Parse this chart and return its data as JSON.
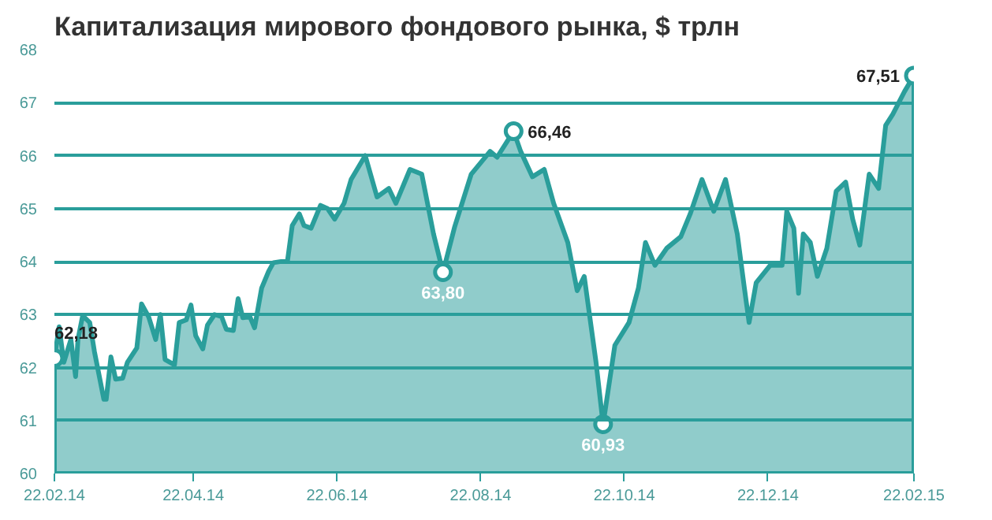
{
  "chart_data": {
    "type": "area",
    "title": "Капитализация мирового фондового рынка, $ трлн",
    "x": [
      "2014-02-22",
      "2014-02-24",
      "2014-02-26",
      "2014-03-01",
      "2014-03-03",
      "2014-03-04",
      "2014-03-06",
      "2014-03-09",
      "2014-03-11",
      "2014-03-15",
      "2014-03-16",
      "2014-03-18",
      "2014-03-20",
      "2014-03-23",
      "2014-03-25",
      "2014-03-29",
      "2014-03-31",
      "2014-04-03",
      "2014-04-06",
      "2014-04-08",
      "2014-04-10",
      "2014-04-14",
      "2014-04-16",
      "2014-04-19",
      "2014-04-21",
      "2014-04-23",
      "2014-04-26",
      "2014-04-28",
      "2014-05-01",
      "2014-05-04",
      "2014-05-06",
      "2014-05-09",
      "2014-05-11",
      "2014-05-13",
      "2014-05-16",
      "2014-05-18",
      "2014-05-21",
      "2014-05-24",
      "2014-05-26",
      "2014-06-01",
      "2014-06-03",
      "2014-06-06",
      "2014-06-08",
      "2014-06-11",
      "2014-06-15",
      "2014-06-18",
      "2014-06-21",
      "2014-06-25",
      "2014-06-28",
      "2014-07-04",
      "2014-07-09",
      "2014-07-14",
      "2014-07-17",
      "2014-07-23",
      "2014-07-28",
      "2014-08-02",
      "2014-08-06",
      "2014-08-11",
      "2014-08-18",
      "2014-08-26",
      "2014-08-29",
      "2014-09-05",
      "2014-09-08",
      "2014-09-13",
      "2014-09-18",
      "2014-09-22",
      "2014-09-28",
      "2014-10-02",
      "2014-10-05",
      "2014-10-10",
      "2014-10-13",
      "2014-10-18",
      "2014-10-24",
      "2014-10-28",
      "2014-10-31",
      "2014-11-04",
      "2014-11-09",
      "2014-11-15",
      "2014-11-19",
      "2014-11-24",
      "2014-11-29",
      "2014-12-04",
      "2014-12-09",
      "2014-12-12",
      "2014-12-14",
      "2014-12-17",
      "2014-12-23",
      "2014-12-28",
      "2014-12-30",
      "2015-01-02",
      "2015-01-04",
      "2015-01-06",
      "2015-01-09",
      "2015-01-12",
      "2015-01-16",
      "2015-01-20",
      "2015-01-24",
      "2015-01-27",
      "2015-01-30",
      "2015-02-03",
      "2015-02-07",
      "2015-02-10",
      "2015-02-13",
      "2015-02-18",
      "2015-02-22"
    ],
    "series": [
      {
        "color": "#2a9e9b",
        "values": [
          62.18,
          62.77,
          62.1,
          62.53,
          61.83,
          62.53,
          62.98,
          62.85,
          62.3,
          61.4,
          61.4,
          62.2,
          61.78,
          61.8,
          62.1,
          62.37,
          63.2,
          62.96,
          62.53,
          63.0,
          62.15,
          62.05,
          62.85,
          62.9,
          63.18,
          62.6,
          62.35,
          62.8,
          63.0,
          62.96,
          62.72,
          62.7,
          63.3,
          62.94,
          62.96,
          62.75,
          63.5,
          63.82,
          63.98,
          64.02,
          64.68,
          64.9,
          64.68,
          64.63,
          65.06,
          65.0,
          64.8,
          65.1,
          65.55,
          66.0,
          65.22,
          65.38,
          65.1,
          65.74,
          65.65,
          64.52,
          63.8,
          64.66,
          65.65,
          66.08,
          65.97,
          66.46,
          66.08,
          65.6,
          65.74,
          65.1,
          64.36,
          63.45,
          63.72,
          62.1,
          60.93,
          62.42,
          62.85,
          63.5,
          64.36,
          63.93,
          64.25,
          64.47,
          64.9,
          65.55,
          64.95,
          65.55,
          64.52,
          63.5,
          62.85,
          63.6,
          63.93,
          63.93,
          64.95,
          64.63,
          63.4,
          64.52,
          64.36,
          63.72,
          64.25,
          65.33,
          65.5,
          64.8,
          64.31,
          65.65,
          65.38,
          66.57,
          66.78,
          67.21,
          67.51
        ]
      }
    ],
    "xlim": [
      "2014-02-22",
      "2015-02-22"
    ],
    "xticks": [
      {
        "value": "2014-02-22",
        "label": "22.02.14"
      },
      {
        "value": "2014-04-22",
        "label": "22.04.14"
      },
      {
        "value": "2014-06-22",
        "label": "22.06.14"
      },
      {
        "value": "2014-08-22",
        "label": "22.08.14"
      },
      {
        "value": "2014-10-22",
        "label": "22.10.14"
      },
      {
        "value": "2014-12-22",
        "label": "22.12.14"
      },
      {
        "value": "2015-02-22",
        "label": "22.02.15"
      }
    ],
    "ylim": [
      60,
      68
    ],
    "yticks": [
      60,
      61,
      62,
      63,
      64,
      65,
      66,
      67,
      68
    ],
    "grid": "y",
    "marker": "none",
    "annotations": [
      {
        "text": "62,18",
        "x": "2014-02-22",
        "y": 62.18
      },
      {
        "text": "63,80",
        "x": "2014-08-06",
        "y": 63.8
      },
      {
        "text": "66,46",
        "x": "2014-09-05",
        "y": 66.46
      },
      {
        "text": "60,93",
        "x": "2014-10-13",
        "y": 60.93
      },
      {
        "text": "67,51",
        "x": "2015-02-22",
        "y": 67.51
      }
    ]
  }
}
